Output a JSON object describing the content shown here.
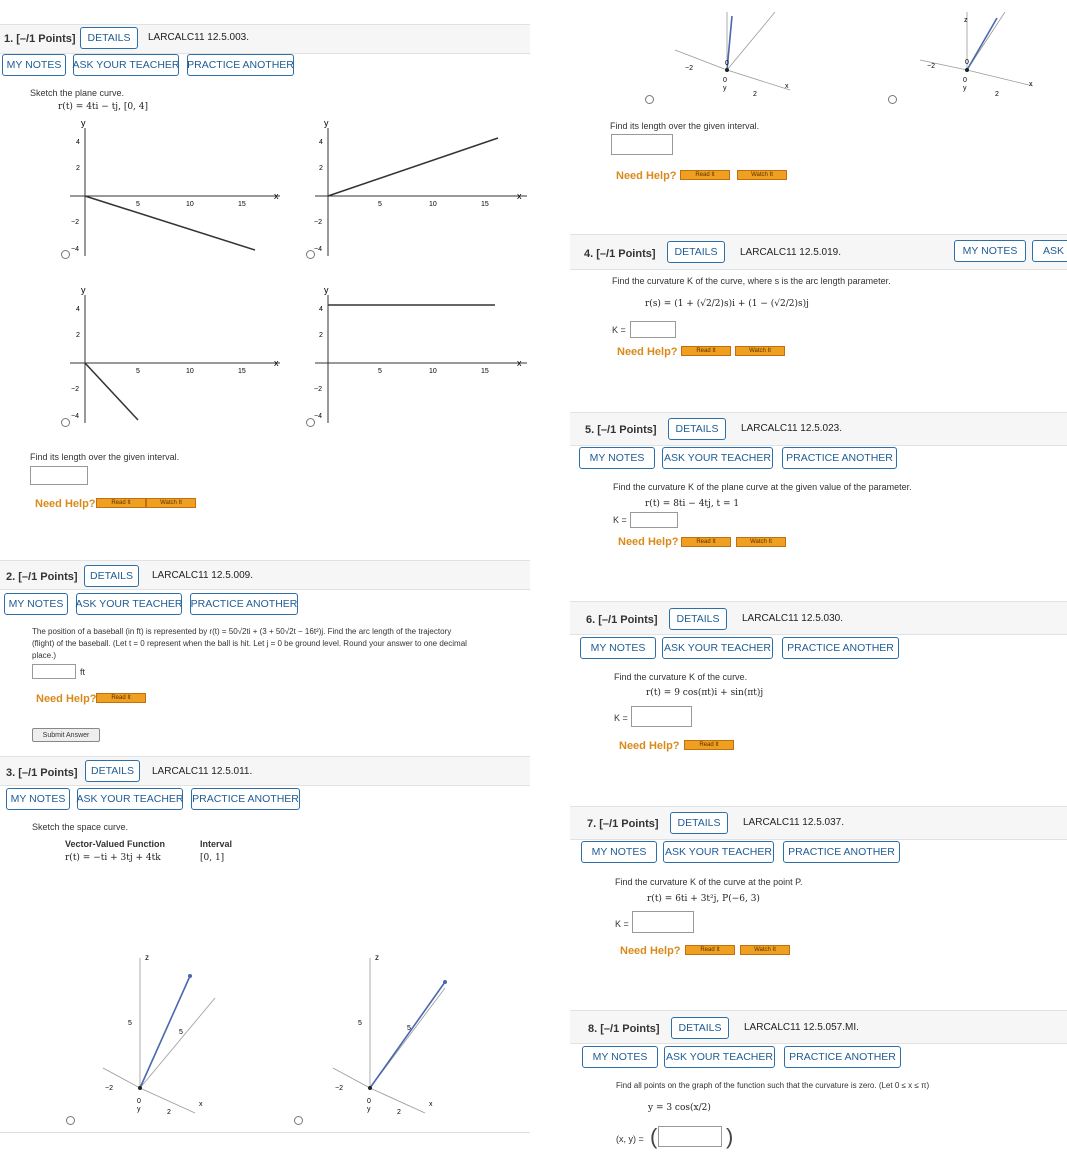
{
  "common": {
    "details": "DETAILS",
    "my_notes": "MY NOTES",
    "ask_teacher": "ASK YOUR TEACHER",
    "ask_teacher_cut": "ASK Y",
    "practice": "PRACTICE ANOTHER",
    "need_help": "Need Help?",
    "read_it": "Read It",
    "watch_it": "Watch It",
    "submit": "Submit Answer",
    "k_eq": "K ="
  },
  "q1": {
    "num": "1. [–/1 Points]",
    "code": "LARCALC11 12.5.003.",
    "prompt": "Sketch the plane curve.",
    "formula": "r(t) = 4ti − tj,  [0, 4]",
    "length_prompt": "Find its length over the given interval.",
    "graph_labels": {
      "y": "y",
      "x": "x",
      "t4": "4",
      "t2": "2",
      "tm2": "−2",
      "tm4": "−4",
      "t5": "5",
      "t10": "10",
      "t15": "15"
    }
  },
  "q2": {
    "num": "2. [–/1 Points]",
    "code": "LARCALC11 12.5.009.",
    "text1": "The position of a baseball (in ft) is represented by r(t) = 50√2ti + (3 + 50√2t − 16t²)j. Find the arc length of the trajectory",
    "text2": "(flight) of the baseball. (Let t = 0 represent when the ball is hit. Let j = 0 be ground level. Round your answer to one decimal",
    "text3": "place.)",
    "unit": "ft"
  },
  "q3": {
    "num": "3. [–/1 Points]",
    "code": "LARCALC11 12.5.011.",
    "prompt": "Sketch the space curve.",
    "col1": "Vector-Valued Function",
    "col2": "Interval",
    "func": "r(t) = −ti + 3tj + 4tk",
    "interval": "[0, 1]",
    "length_prompt": "Find its length over the given interval.",
    "axis": {
      "z": "z",
      "x": "x",
      "y": "y",
      "five": "5",
      "two": "2",
      "m2": "−2",
      "zero": "0"
    }
  },
  "q4": {
    "num": "4. [–/1 Points]",
    "code": "LARCALC11 12.5.019.",
    "prompt": "Find the curvature K of the curve, where s is the arc length parameter.",
    "formula": "r(s) = (1 + (√2/2)s)i + (1 − (√2/2)s)j"
  },
  "q5": {
    "num": "5. [–/1 Points]",
    "code": "LARCALC11 12.5.023.",
    "prompt": "Find the curvature K of the plane curve at the given value of the parameter.",
    "formula": "r(t) = 8ti − 4tj,   t = 1"
  },
  "q6": {
    "num": "6. [–/1 Points]",
    "code": "LARCALC11 12.5.030.",
    "prompt": "Find the curvature K of the curve.",
    "formula": "r(t) = 9 cos(πt)i + sin(πt)j"
  },
  "q7": {
    "num": "7. [–/1 Points]",
    "code": "LARCALC11 12.5.037.",
    "prompt": "Find the curvature K of the curve at the point P.",
    "formula": "r(t) = 6ti + 3t²j,  P(−6, 3)"
  },
  "q8": {
    "num": "8. [–/1 Points]",
    "code": "LARCALC11 12.5.057.MI.",
    "prompt": "Find all points on the graph of the function such that the curvature is zero. (Let 0 ≤ x ≤ π)",
    "formula": "y = 3 cos(x/2)",
    "xy": "(x, y) ="
  },
  "colors": {
    "accent": "#2d6fa8",
    "help": "#d98a1a",
    "red": "#c0392b",
    "curve": "#4a67b0"
  }
}
